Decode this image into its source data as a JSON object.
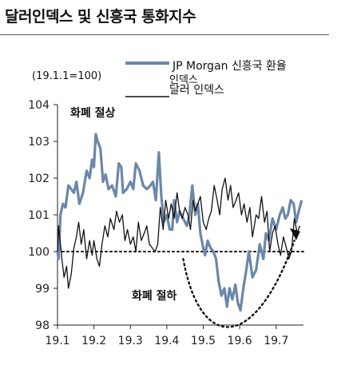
{
  "title": "달러인덱스 및 신흥국 통화지수",
  "chart_data": {
    "type": "line",
    "note": "(19.1.1=100)",
    "y_ticks": [
      "104",
      "103",
      "102",
      "101",
      "100",
      "99",
      "98"
    ],
    "ylim": [
      98,
      104
    ],
    "x_ticks": [
      "19.1",
      "19.2",
      "19.3",
      "19.4",
      "19.5",
      "19.6",
      "19.7"
    ],
    "x_tick_positions": [
      1,
      2,
      3,
      4,
      5,
      6,
      7
    ],
    "xlim": [
      1,
      7.75
    ],
    "reference_line": 100,
    "annotations": {
      "upper": "화폐 절상",
      "lower": "화폐 절하"
    },
    "series": [
      {
        "name_line1": "JP Morgan 신흥국 환율",
        "name_line2": "인덱스",
        "color": "#6b87aa",
        "x": [
          1.0,
          1.03,
          1.08,
          1.15,
          1.22,
          1.3,
          1.38,
          1.45,
          1.52,
          1.6,
          1.7,
          1.8,
          1.88,
          1.95,
          2.0,
          2.05,
          2.1,
          2.18,
          2.25,
          2.32,
          2.4,
          2.5,
          2.6,
          2.68,
          2.75,
          2.8,
          2.9,
          3.0,
          3.08,
          3.15,
          3.25,
          3.35,
          3.45,
          3.55,
          3.62,
          3.7,
          3.78,
          3.85,
          3.92,
          4.0,
          4.08,
          4.15,
          4.2,
          4.28,
          4.35,
          4.45,
          4.55,
          4.62,
          4.7,
          4.78,
          4.85,
          4.92,
          5.0,
          5.05,
          5.12,
          5.2,
          5.28,
          5.35,
          5.42,
          5.5,
          5.58,
          5.65,
          5.72,
          5.8,
          5.88,
          5.95,
          6.02,
          6.1,
          6.18,
          6.25,
          6.35,
          6.45,
          6.55,
          6.65,
          6.72,
          6.8,
          6.9,
          7.0,
          7.1,
          7.18,
          7.25,
          7.32,
          7.4,
          7.48,
          7.55,
          7.62,
          7.7
        ],
        "y": [
          100.0,
          99.8,
          101.0,
          101.3,
          101.2,
          101.8,
          101.7,
          101.6,
          101.9,
          101.3,
          101.6,
          102.2,
          102.0,
          102.5,
          102.3,
          103.2,
          103.0,
          102.8,
          101.9,
          102.1,
          101.7,
          101.8,
          101.5,
          102.4,
          102.3,
          101.6,
          101.7,
          101.9,
          101.7,
          102.4,
          102.2,
          101.8,
          101.7,
          101.8,
          101.9,
          101.4,
          102.7,
          101.5,
          100.8,
          101.0,
          100.6,
          100.6,
          101.4,
          100.8,
          101.1,
          100.9,
          100.7,
          101.0,
          101.8,
          101.0,
          101.3,
          100.5,
          100.1,
          99.9,
          100.3,
          100.1,
          100.0,
          99.8,
          99.2,
          98.8,
          99.0,
          98.5,
          99.0,
          98.7,
          99.1,
          98.6,
          98.4,
          99.0,
          99.5,
          100.0,
          99.3,
          99.5,
          100.2,
          99.8,
          100.5,
          100.3,
          100.9,
          100.6,
          101.0,
          101.2,
          100.9,
          101.0,
          101.4,
          101.3,
          100.8,
          101.1,
          101.4
        ]
      },
      {
        "name": "달러 인덱스",
        "color": "#111111",
        "x": [
          1.0,
          1.03,
          1.08,
          1.12,
          1.18,
          1.25,
          1.3,
          1.38,
          1.45,
          1.52,
          1.58,
          1.65,
          1.72,
          1.8,
          1.88,
          1.95,
          2.0,
          2.08,
          2.15,
          2.22,
          2.3,
          2.38,
          2.45,
          2.55,
          2.62,
          2.7,
          2.78,
          2.85,
          2.92,
          3.0,
          3.08,
          3.15,
          3.22,
          3.3,
          3.38,
          3.45,
          3.52,
          3.6,
          3.68,
          3.75,
          3.82,
          3.9,
          3.97,
          4.05,
          4.12,
          4.2,
          4.28,
          4.35,
          4.42,
          4.5,
          4.58,
          4.65,
          4.72,
          4.78,
          4.85,
          4.92,
          5.0,
          5.08,
          5.15,
          5.22,
          5.3,
          5.38,
          5.45,
          5.52,
          5.6,
          5.68,
          5.75,
          5.82,
          5.9,
          5.97,
          6.05,
          6.12,
          6.2,
          6.28,
          6.35,
          6.45,
          6.52,
          6.6,
          6.68,
          6.75,
          6.82,
          6.9,
          6.97,
          7.05,
          7.12,
          7.2,
          7.28,
          7.35,
          7.42,
          7.5,
          7.58,
          7.65
        ],
        "y": [
          100.0,
          100.7,
          100.2,
          99.8,
          99.3,
          99.6,
          99.0,
          99.4,
          100.1,
          100.4,
          100.8,
          100.2,
          100.6,
          99.8,
          100.3,
          99.9,
          100.3,
          99.8,
          99.6,
          100.2,
          100.7,
          100.4,
          100.9,
          100.6,
          101.1,
          100.8,
          101.0,
          100.3,
          100.6,
          100.2,
          100.4,
          100.0,
          100.8,
          100.3,
          100.5,
          100.7,
          100.2,
          100.1,
          100.0,
          100.2,
          101.2,
          100.6,
          101.4,
          100.9,
          101.3,
          100.9,
          101.6,
          101.1,
          100.9,
          101.2,
          101.0,
          100.6,
          101.4,
          101.1,
          101.3,
          101.5,
          100.8,
          100.6,
          100.9,
          101.1,
          101.8,
          101.4,
          101.0,
          101.7,
          102.0,
          101.4,
          101.8,
          101.2,
          101.4,
          101.6,
          101.0,
          101.3,
          100.8,
          101.2,
          100.4,
          101.0,
          100.9,
          101.5,
          100.8,
          101.1,
          100.0,
          100.5,
          100.7,
          100.2,
          99.9,
          100.4,
          100.1,
          99.8,
          100.0,
          100.9,
          100.5,
          100.7
        ]
      }
    ],
    "grid": false,
    "legend_position": "top-right"
  }
}
